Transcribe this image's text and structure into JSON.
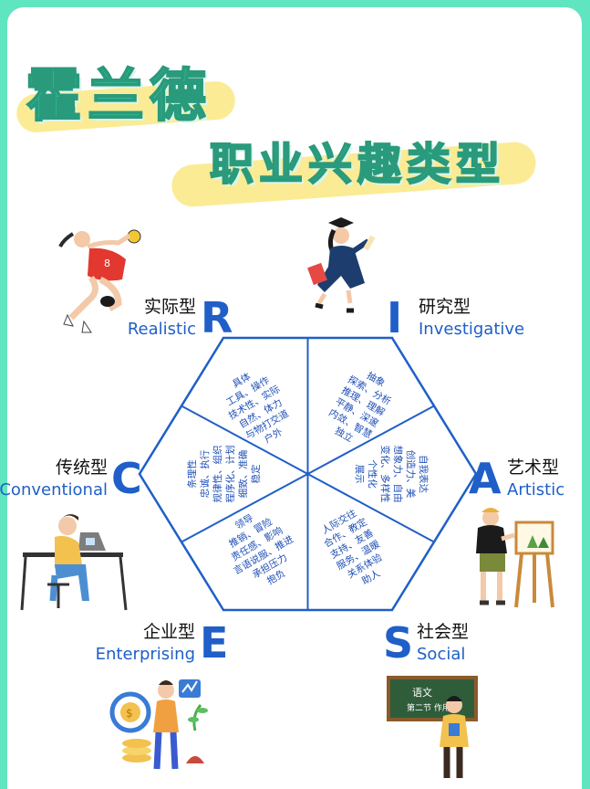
{
  "title": "霍兰德",
  "subtitle": "职业兴趣类型",
  "types": {
    "R": {
      "letter": "R",
      "name_cn": "实际型",
      "name_en": "Realistic",
      "traits": [
        "具体",
        "工具、操作",
        "技术性、实际",
        "自然、体力",
        "与物打交道",
        "户外"
      ]
    },
    "I": {
      "letter": "I",
      "name_cn": "研究型",
      "name_en": "Investigative",
      "traits": [
        "抽象",
        "探索、分析",
        "推理、理解",
        "平静、深邃",
        "内敛、智慧",
        "独立"
      ]
    },
    "A": {
      "letter": "A",
      "name_cn": "艺术型",
      "name_en": "Artistic",
      "traits": [
        "自我表达",
        "创造力、美",
        "想象力、自由",
        "变化、多样性",
        "个性化",
        "展示"
      ]
    },
    "S": {
      "letter": "S",
      "name_cn": "社会型",
      "name_en": "Social",
      "traits": [
        "人际交往",
        "合作、教定",
        "支持、友善",
        "服务、温暖",
        "关系体验",
        "助人"
      ]
    },
    "E": {
      "letter": "E",
      "name_cn": "企业型",
      "name_en": "Enterprising",
      "traits": [
        "领导",
        "推销、冒险",
        "责任感、影响",
        "言语说服、推进",
        "承担压力",
        "抱负"
      ]
    },
    "C": {
      "letter": "C",
      "name_cn": "传统型",
      "name_en": "Conventional",
      "traits": [
        "条理性",
        "忠诚、执行",
        "规律性、组织",
        "程序化、计划",
        "细致、准确",
        "稳定"
      ]
    }
  },
  "board_text": [
    "语文",
    "第二节 作用"
  ],
  "colors": {
    "accent": "#1f5fc7",
    "title": "#35c49a",
    "highlight": "#fbe98a",
    "frame": "#5fe6c0"
  }
}
